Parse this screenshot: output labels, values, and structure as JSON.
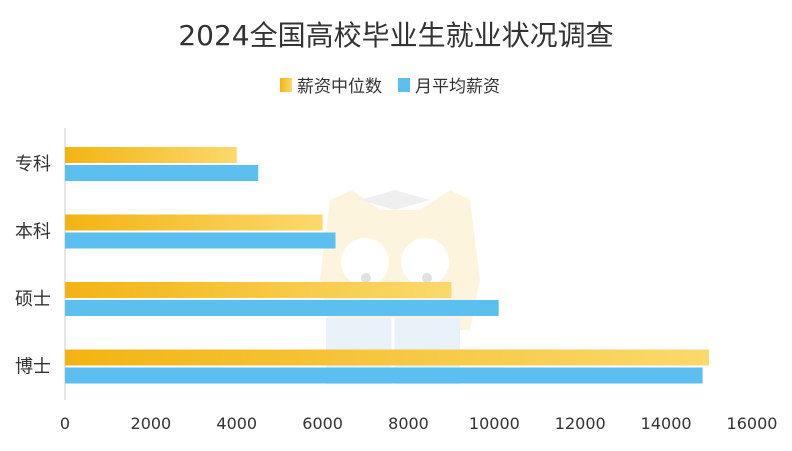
{
  "chart_data": {
    "type": "bar",
    "orientation": "horizontal",
    "title": "2024全国高校毕业生就业状况调查",
    "categories": [
      "专科",
      "本科",
      "硕士",
      "博士"
    ],
    "series": [
      {
        "name": "薪资中位数",
        "values": [
          4000,
          6000,
          9000,
          15000
        ],
        "color": "#f5b921"
      },
      {
        "name": "月平均薪资",
        "values": [
          4500,
          6300,
          10100,
          14850
        ],
        "color": "#5bc0f0"
      }
    ],
    "xlim": [
      0,
      16000
    ],
    "x_ticks": [
      "0",
      "2000",
      "4000",
      "6000",
      "8000",
      "10000",
      "12000",
      "14000",
      "16000"
    ],
    "legend_position": "top-center",
    "grid": false
  }
}
